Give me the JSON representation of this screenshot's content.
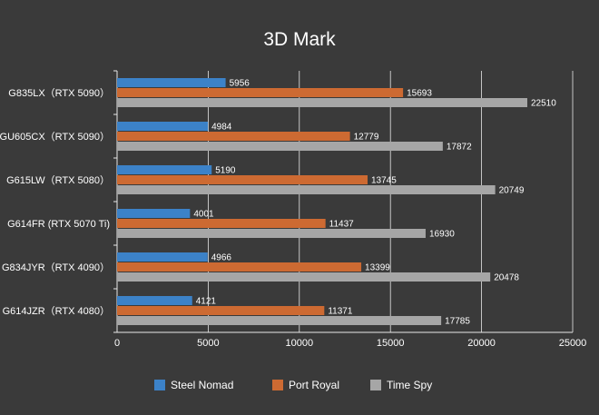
{
  "chart_data": {
    "type": "bar",
    "orientation": "horizontal",
    "title": "3D Mark",
    "xlabel": "",
    "ylabel": "",
    "xlim": [
      0,
      25000
    ],
    "x_ticks": [
      0,
      5000,
      10000,
      15000,
      20000,
      25000
    ],
    "grid": "vertical",
    "legend_position": "bottom",
    "categories": [
      "G835LX（RTX 5090）",
      "GU605CX（RTX 5090）",
      "G615LW（RTX 5080）",
      "G614FR (RTX 5070 Ti)",
      "G834JYR（RTX 4090）",
      "G614JZR（RTX 4080）"
    ],
    "series": [
      {
        "name": "Steel Nomad",
        "color": "#3c82c8",
        "values": [
          5956,
          4984,
          5190,
          4001,
          4966,
          4121
        ]
      },
      {
        "name": "Port Royal",
        "color": "#cd6a32",
        "values": [
          15693,
          12779,
          13745,
          11437,
          13399,
          11371
        ]
      },
      {
        "name": "Time Spy",
        "color": "#a6a6a6",
        "values": [
          22510,
          17872,
          20749,
          16930,
          20478,
          17785
        ]
      }
    ]
  },
  "colors": {
    "background": "#3a3a3a",
    "gridline": "#e8e8e8",
    "text": "#ffffff"
  }
}
